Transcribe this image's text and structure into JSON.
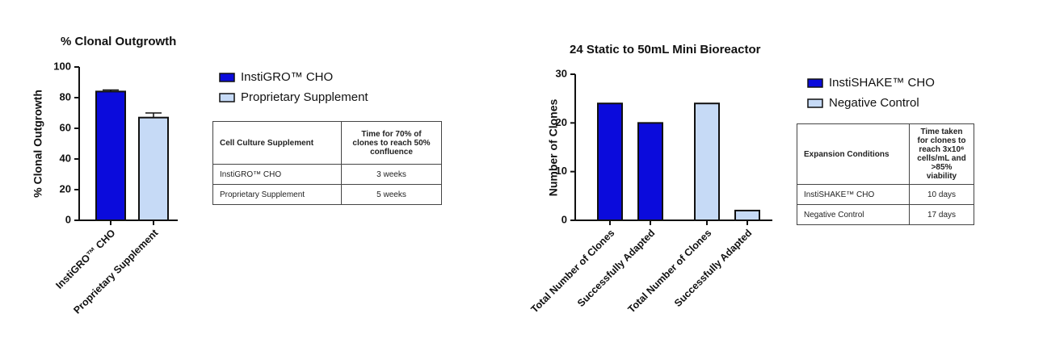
{
  "chart_data": [
    {
      "type": "bar",
      "title": "% Clonal Outgrowth",
      "y_label": "% Clonal Outgrowth",
      "categories": [
        "InstiGRO™ CHO",
        "Proprietary Supplement"
      ],
      "values": [
        84,
        67
      ],
      "errors": [
        1,
        3
      ],
      "colors": [
        "#0b0bdc",
        "#c6daf6"
      ],
      "ylim": [
        0,
        100
      ],
      "yticks": [
        0,
        20,
        40,
        60,
        80,
        100
      ],
      "table": {
        "header": [
          "Cell Culture Supplement",
          "Time for 70% of clones to reach 50% confluence"
        ],
        "rows": [
          [
            "InstiGRO™ CHO",
            "3 weeks"
          ],
          [
            "Proprietary Supplement",
            "5 weeks"
          ]
        ]
      }
    },
    {
      "type": "grouped_bar",
      "title": "24 Static to 50mL Mini Bioreactor",
      "y_label": "Number of Clones",
      "categories": [
        "Total Number of Clones",
        "Successfully Adapted",
        "Total Number of Clones",
        "Successfully Adapted"
      ],
      "series": [
        {
          "name": "InstiSHAKE™ CHO",
          "color": "#0b0bdc",
          "values": [
            24,
            20,
            null,
            null
          ]
        },
        {
          "name": "Negative Control",
          "color": "#c6daf6",
          "values": [
            null,
            null,
            24,
            2
          ]
        }
      ],
      "ylim": [
        0,
        30
      ],
      "yticks": [
        0,
        10,
        20,
        30
      ],
      "table": {
        "header": [
          "Expansion Conditions",
          "Time taken for clones to reach 3x10⁶ cells/mL and >85% viability"
        ],
        "rows": [
          [
            "InstiSHAKE™ CHO",
            "10 days"
          ],
          [
            "Negative Control",
            "17 days"
          ]
        ]
      }
    }
  ]
}
